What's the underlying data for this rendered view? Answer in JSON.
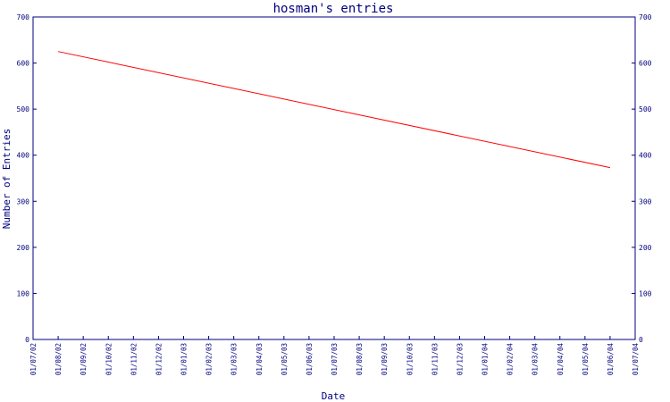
{
  "chart_data": {
    "type": "line",
    "title": "hosman's entries",
    "xlabel": "Date",
    "ylabel": "Number of Entries",
    "ylim": [
      0,
      700
    ],
    "yticks": [
      0,
      100,
      200,
      300,
      400,
      500,
      600,
      700
    ],
    "x_ticks": [
      "01/07/02",
      "01/08/02",
      "01/09/02",
      "01/10/02",
      "01/11/02",
      "01/12/02",
      "01/01/03",
      "01/02/03",
      "01/03/03",
      "01/04/03",
      "01/05/03",
      "01/06/03",
      "01/07/03",
      "01/08/03",
      "01/09/03",
      "01/10/03",
      "01/11/03",
      "01/12/03",
      "01/01/04",
      "01/02/04",
      "01/03/04",
      "01/04/04",
      "01/05/04",
      "01/06/04",
      "01/07/04"
    ],
    "series": [
      {
        "color": "#ff0000",
        "x": [
          "01/08/02",
          "01/06/04"
        ],
        "y": [
          625,
          373
        ]
      }
    ],
    "grid": false,
    "colors": {
      "axis": "#00007f",
      "line": "#ff0000"
    }
  }
}
